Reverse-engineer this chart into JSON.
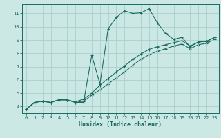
{
  "xlabel": "Humidex (Indice chaleur)",
  "bg_color": "#cce8e5",
  "grid_color": "#aacfcc",
  "line_color": "#1a6b62",
  "xlim": [
    -0.5,
    23.5
  ],
  "ylim": [
    3.5,
    11.7
  ],
  "xticks": [
    0,
    1,
    2,
    3,
    4,
    5,
    6,
    7,
    8,
    9,
    10,
    11,
    12,
    13,
    14,
    15,
    16,
    17,
    18,
    19,
    20,
    21,
    22,
    23
  ],
  "yticks": [
    4,
    5,
    6,
    7,
    8,
    9,
    10,
    11
  ],
  "line1_x": [
    0,
    1,
    2,
    3,
    4,
    5,
    6,
    7,
    8,
    9,
    10,
    11,
    12,
    13,
    14,
    15,
    16,
    17,
    18,
    19,
    20,
    21,
    22,
    23
  ],
  "line1_y": [
    3.8,
    4.3,
    4.4,
    4.3,
    4.5,
    4.5,
    4.3,
    4.3,
    7.85,
    5.7,
    9.85,
    10.7,
    11.2,
    11.0,
    11.05,
    11.35,
    10.3,
    9.5,
    9.05,
    9.2,
    8.5,
    8.85,
    8.9,
    9.2
  ],
  "line2_x": [
    0,
    1,
    2,
    3,
    4,
    5,
    6,
    7,
    8,
    9,
    10,
    11,
    12,
    13,
    14,
    15,
    16,
    17,
    18,
    19,
    20,
    21,
    22,
    23
  ],
  "line2_y": [
    3.8,
    4.3,
    4.4,
    4.3,
    4.5,
    4.5,
    4.35,
    4.55,
    5.0,
    5.6,
    6.1,
    6.6,
    7.05,
    7.55,
    7.95,
    8.3,
    8.5,
    8.65,
    8.8,
    8.95,
    8.55,
    8.85,
    8.9,
    9.2
  ],
  "line3_x": [
    0,
    1,
    2,
    3,
    4,
    5,
    6,
    7,
    8,
    9,
    10,
    11,
    12,
    13,
    14,
    15,
    16,
    17,
    18,
    19,
    20,
    21,
    22,
    23
  ],
  "line3_y": [
    3.8,
    4.3,
    4.4,
    4.3,
    4.5,
    4.5,
    4.3,
    4.4,
    4.85,
    5.25,
    5.7,
    6.15,
    6.6,
    7.1,
    7.55,
    7.9,
    8.15,
    8.35,
    8.55,
    8.7,
    8.35,
    8.65,
    8.75,
    9.05
  ]
}
